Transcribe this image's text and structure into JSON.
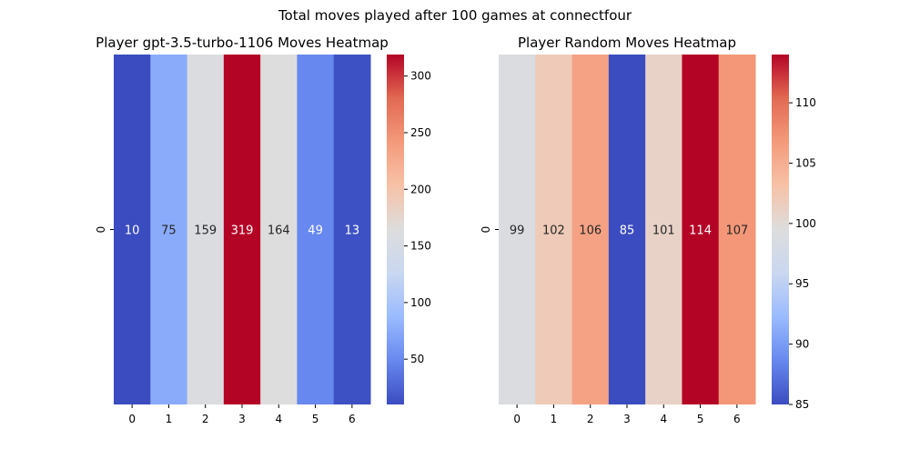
{
  "suptitle": "Total moves played after 100 games at connectfour",
  "colormap": "coolwarm",
  "colormap_stops": [
    "#3b4cc0",
    "#6788ee",
    "#9abbff",
    "#c9d7f0",
    "#dddddd",
    "#f7c2a7",
    "#f49a7b",
    "#e26952",
    "#b40426"
  ],
  "chart_data": [
    {
      "type": "heatmap",
      "title": "Player gpt-3.5-turbo-1106 Moves Heatmap",
      "x_categories": [
        "0",
        "1",
        "2",
        "3",
        "4",
        "5",
        "6"
      ],
      "y_categories": [
        "0"
      ],
      "values": [
        [
          10,
          75,
          159,
          319,
          164,
          49,
          13
        ]
      ],
      "colorbar_range": [
        10,
        319
      ],
      "colorbar_ticks": [
        50,
        100,
        150,
        200,
        250,
        300
      ]
    },
    {
      "type": "heatmap",
      "title": "Player Random Moves Heatmap",
      "x_categories": [
        "0",
        "1",
        "2",
        "3",
        "4",
        "5",
        "6"
      ],
      "y_categories": [
        "0"
      ],
      "values": [
        [
          99,
          102,
          106,
          85,
          101,
          114,
          107
        ]
      ],
      "colorbar_range": [
        85,
        114
      ],
      "colorbar_ticks": [
        85,
        90,
        95,
        100,
        105,
        110
      ]
    }
  ]
}
